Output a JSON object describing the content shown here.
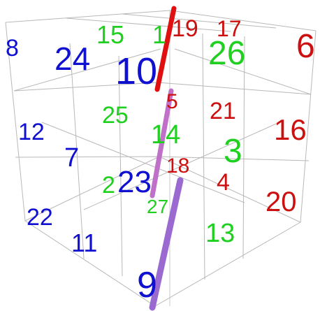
{
  "colors": {
    "blue": "#1010d0",
    "green": "#20d020",
    "red": "#cc1010",
    "grid": "#b8b8b8",
    "bar_red": "#e01010",
    "bar_pink": "#c070c8",
    "bar_purple": "#9a6ad0"
  },
  "numbers": [
    {
      "value": "8",
      "color": "blue"
    },
    {
      "value": "24",
      "color": "blue"
    },
    {
      "value": "10",
      "color": "blue"
    },
    {
      "value": "12",
      "color": "blue"
    },
    {
      "value": "7",
      "color": "blue"
    },
    {
      "value": "23",
      "color": "blue"
    },
    {
      "value": "22",
      "color": "blue"
    },
    {
      "value": "11",
      "color": "blue"
    },
    {
      "value": "9",
      "color": "blue"
    },
    {
      "value": "15",
      "color": "green"
    },
    {
      "value": "1",
      "color": "green"
    },
    {
      "value": "26",
      "color": "green"
    },
    {
      "value": "25",
      "color": "green"
    },
    {
      "value": "14",
      "color": "green"
    },
    {
      "value": "3",
      "color": "green"
    },
    {
      "value": "2",
      "color": "green"
    },
    {
      "value": "27",
      "color": "green"
    },
    {
      "value": "13",
      "color": "green"
    },
    {
      "value": "19",
      "color": "red"
    },
    {
      "value": "17",
      "color": "red"
    },
    {
      "value": "6",
      "color": "red"
    },
    {
      "value": "5",
      "color": "red"
    },
    {
      "value": "21",
      "color": "red"
    },
    {
      "value": "16",
      "color": "red"
    },
    {
      "value": "18",
      "color": "red"
    },
    {
      "value": "4",
      "color": "red"
    },
    {
      "value": "20",
      "color": "red"
    }
  ]
}
